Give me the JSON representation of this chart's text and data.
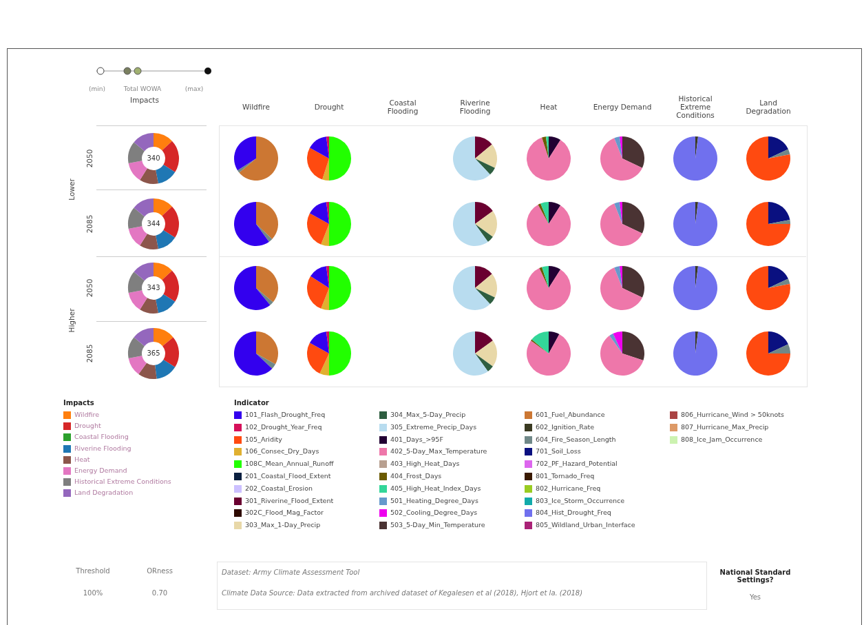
{
  "chart_data": [
    {
      "type": "other",
      "annotations": [
        "(min)",
        "Total WOWA",
        "(max)",
        "Impacts",
        "Wildfire",
        "Drought",
        "Coastal Flooding",
        "Riverine Flooding",
        "Heat",
        "Energy Demand",
        "Historical Extreme Conditions",
        "Land Degradation",
        "Lower",
        "Higher",
        "2050",
        "2085",
        "2050",
        "2085"
      ]
    },
    {
      "type": "donut",
      "categories": [
        null,
        null,
        null,
        null,
        null,
        null,
        null,
        null
      ],
      "values": [
        13,
        21,
        null,
        13,
        12,
        13,
        14,
        14
      ],
      "colors": [
        "#ff7f0e",
        "#d62728",
        "#2ca02c",
        "#1f77b4",
        "#8c564b",
        "#e377c2",
        "#7f7f7f",
        "#9467bd"
      ],
      "annotations": [
        "340"
      ]
    },
    {
      "type": "pie",
      "categories": [
        null,
        null,
        null
      ],
      "values": [
        64,
        2,
        34
      ],
      "colors": [
        "#cc7733",
        "#708888",
        "#3300ee"
      ]
    },
    {
      "type": "pie",
      "categories": [
        null,
        null,
        null,
        null,
        null
      ],
      "values": [
        50,
        5,
        28,
        15,
        2
      ],
      "colors": [
        "#22ff00",
        "#e0b030",
        "#ff4a10",
        "#3300ee",
        "#d6105a"
      ]
    },
    {
      "type": "pie",
      "categories": [
        null,
        null,
        null,
        null
      ],
      "values": [
        14,
        18,
        6,
        62
      ],
      "colors": [
        "#6a0030",
        "#e8d8a8",
        "#2e5e40",
        "#b8dcef"
      ]
    },
    {
      "type": "pie",
      "categories": [
        null,
        null,
        null,
        null
      ],
      "values": [
        9,
        86,
        3,
        2
      ],
      "colors": [
        "#220033",
        "#ee77aa",
        "#6b5a00",
        "#33d699"
      ]
    },
    {
      "type": "pie",
      "categories": [
        null,
        null,
        null,
        null
      ],
      "values": [
        32,
        62,
        4,
        2
      ],
      "colors": [
        "#4a3333",
        "#ee77aa",
        "#6699cc",
        "#ee00ee"
      ]
    },
    {
      "type": "pie",
      "categories": [
        null,
        null
      ],
      "values": [
        2,
        98
      ],
      "colors": [
        "#3a3a22",
        "#7070ee"
      ]
    },
    {
      "type": "pie",
      "categories": [
        null,
        null,
        null
      ],
      "values": [
        18,
        4,
        78
      ],
      "colors": [
        "#0a1080",
        "#708888",
        "#ff4a10"
      ]
    },
    {
      "type": "donut",
      "categories": [
        null,
        null,
        null,
        null,
        null,
        null,
        null,
        null
      ],
      "values": [
        13,
        21,
        null,
        13,
        12,
        13,
        14,
        14
      ],
      "colors": [
        "#ff7f0e",
        "#d62728",
        "#2ca02c",
        "#1f77b4",
        "#8c564b",
        "#e377c2",
        "#7f7f7f",
        "#9467bd"
      ],
      "annotations": [
        "344"
      ]
    },
    {
      "type": "pie",
      "categories": [
        null,
        null,
        null
      ],
      "values": [
        37,
        3,
        60
      ],
      "colors": [
        "#cc7733",
        "#708888",
        "#3300ee"
      ]
    },
    {
      "type": "pie",
      "categories": [
        null,
        null,
        null,
        null,
        null
      ],
      "values": [
        50,
        6,
        27,
        15,
        2
      ],
      "colors": [
        "#22ff00",
        "#e0b030",
        "#ff4a10",
        "#3300ee",
        "#d6105a"
      ]
    },
    {
      "type": "pie",
      "categories": [
        null,
        null,
        null,
        null
      ],
      "values": [
        15,
        20,
        5,
        60
      ],
      "colors": [
        "#6a0030",
        "#e8d8a8",
        "#2e5e40",
        "#b8dcef"
      ]
    },
    {
      "type": "pie",
      "categories": [
        null,
        null,
        null,
        null
      ],
      "values": [
        9,
        83,
        2,
        6
      ],
      "colors": [
        "#220033",
        "#ee77aa",
        "#6b5a00",
        "#33d699"
      ]
    },
    {
      "type": "pie",
      "categories": [
        null,
        null,
        null,
        null
      ],
      "values": [
        32,
        62,
        4,
        2
      ],
      "colors": [
        "#4a3333",
        "#ee77aa",
        "#6699cc",
        "#ee00ee"
      ]
    },
    {
      "type": "pie",
      "categories": [
        null,
        null
      ],
      "values": [
        2,
        98
      ],
      "colors": [
        "#3a3a22",
        "#7070ee"
      ]
    },
    {
      "type": "pie",
      "categories": [
        null,
        null,
        null
      ],
      "values": [
        22,
        3,
        75
      ],
      "colors": [
        "#0a1080",
        "#708888",
        "#ff4a10"
      ]
    },
    {
      "type": "donut",
      "categories": [
        null,
        null,
        null,
        null,
        null,
        null,
        null,
        null
      ],
      "values": [
        13,
        21,
        null,
        13,
        12,
        13,
        14,
        14
      ],
      "colors": [
        "#ff7f0e",
        "#d62728",
        "#2ca02c",
        "#1f77b4",
        "#8c564b",
        "#e377c2",
        "#7f7f7f",
        "#9467bd"
      ],
      "annotations": [
        "343"
      ]
    },
    {
      "type": "pie",
      "categories": [
        null,
        null,
        null
      ],
      "values": [
        36,
        3,
        61
      ],
      "colors": [
        "#cc7733",
        "#708888",
        "#3300ee"
      ]
    },
    {
      "type": "pie",
      "categories": [
        null,
        null,
        null,
        null,
        null
      ],
      "values": [
        50,
        6,
        28,
        14,
        2
      ],
      "colors": [
        "#22ff00",
        "#e0b030",
        "#ff4a10",
        "#3300ee",
        "#d6105a"
      ]
    },
    {
      "type": "pie",
      "categories": [
        null,
        null,
        null,
        null
      ],
      "values": [
        14,
        18,
        6,
        62
      ],
      "colors": [
        "#6a0030",
        "#e8d8a8",
        "#2e5e40",
        "#b8dcef"
      ]
    },
    {
      "type": "pie",
      "categories": [
        null,
        null,
        null,
        null
      ],
      "values": [
        9,
        84,
        2,
        5
      ],
      "colors": [
        "#220033",
        "#ee77aa",
        "#6b5a00",
        "#33d699"
      ]
    },
    {
      "type": "pie",
      "categories": [
        null,
        null,
        null,
        null
      ],
      "values": [
        32,
        62,
        4,
        2
      ],
      "colors": [
        "#4a3333",
        "#ee77aa",
        "#6699cc",
        "#ee00ee"
      ]
    },
    {
      "type": "pie",
      "categories": [
        null,
        null
      ],
      "values": [
        2,
        98
      ],
      "colors": [
        "#3a3a22",
        "#7070ee"
      ]
    },
    {
      "type": "pie",
      "categories": [
        null,
        null,
        null
      ],
      "values": [
        18,
        4,
        78
      ],
      "colors": [
        "#0a1080",
        "#708888",
        "#ff4a10"
      ]
    },
    {
      "type": "donut",
      "categories": [
        null,
        null,
        null,
        null,
        null,
        null,
        null,
        null
      ],
      "values": [
        14,
        20,
        null,
        14,
        12,
        12,
        14,
        14
      ],
      "colors": [
        "#ff7f0e",
        "#d62728",
        "#2ca02c",
        "#1f77b4",
        "#8c564b",
        "#e377c2",
        "#7f7f7f",
        "#9467bd"
      ],
      "annotations": [
        "365"
      ]
    },
    {
      "type": "pie",
      "categories": [
        null,
        null,
        null
      ],
      "values": [
        33,
        4,
        63
      ],
      "colors": [
        "#cc7733",
        "#708888",
        "#3300ee"
      ]
    },
    {
      "type": "pie",
      "categories": [
        null,
        null,
        null,
        null,
        null
      ],
      "values": [
        50,
        7,
        26,
        15,
        2
      ],
      "colors": [
        "#22ff00",
        "#e0b030",
        "#ff4a10",
        "#3300ee",
        "#d6105a"
      ]
    },
    {
      "type": "pie",
      "categories": [
        null,
        null,
        null,
        null
      ],
      "values": [
        15,
        20,
        5,
        60
      ],
      "colors": [
        "#6a0030",
        "#e8d8a8",
        "#2e5e40",
        "#b8dcef"
      ]
    },
    {
      "type": "pie",
      "categories": [
        null,
        null,
        null,
        null
      ],
      "values": [
        8,
        77,
        1,
        14
      ],
      "colors": [
        "#220033",
        "#ee77aa",
        "#6b5a00",
        "#33d699"
      ]
    },
    {
      "type": "pie",
      "categories": [
        null,
        null,
        null,
        null
      ],
      "values": [
        30,
        60,
        3,
        7
      ],
      "colors": [
        "#4a3333",
        "#ee77aa",
        "#6699cc",
        "#ee00ee"
      ]
    },
    {
      "type": "pie",
      "categories": [
        null,
        null
      ],
      "values": [
        2,
        98
      ],
      "colors": [
        "#3a3a22",
        "#7070ee"
      ]
    },
    {
      "type": "pie",
      "categories": [
        null,
        null,
        null
      ],
      "values": [
        18,
        7,
        75
      ],
      "colors": [
        "#0a1080",
        "#708888",
        "#ff4a10"
      ]
    },
    {
      "type": "other",
      "legend_title": "Impacts",
      "categories": [
        "Wildfire",
        "Drought",
        "Coastal Flooding",
        "Riverine Flooding",
        "Heat",
        "Energy Demand",
        "Historical Extreme Conditions",
        "Land Degradation"
      ],
      "colors": [
        "#ff7f0e",
        "#d62728",
        "#2ca02c",
        "#1f77b4",
        "#8c564b",
        "#e377c2",
        "#7f7f7f",
        "#9467bd"
      ]
    },
    {
      "type": "other",
      "legend_title": "Indicator",
      "categories": [
        "101_Flash_Drought_Freq",
        "102_Drought_Year_Freq",
        "105_Aridity",
        "106_Consec_Dry_Days",
        "108C_Mean_Annual_Runoff",
        "201_Coastal_Flood_Extent",
        "202_Coastal_Erosion",
        "301_Riverine_Flood_Extent",
        "302C_Flood_Mag_Factor",
        "303_Max_1-Day_Precip",
        "304_Max_5-Day_Precip",
        "305_Extreme_Precip_Days",
        "401_Days_>95F",
        "402_5-Day_Max_Temperature",
        "403_High_Heat_Days",
        "404_Frost_Days",
        "405_High_Heat_Index_Days",
        "501_Heating_Degree_Days",
        "502_Cooling_Degree_Days",
        "503_5-Day_Min_Temperature",
        "601_Fuel_Abundance",
        "602_Ignition_Rate",
        "604_Fire_Season_Length",
        "701_Soil_Loss",
        "702_PF_Hazard_Potential",
        "801_Tornado_Freq",
        "802_Hurricane_Freq",
        "803_Ice_Storm_Occurrence",
        "804_Hist_Drought_Freq",
        "805_Wildland_Urban_Interface",
        "806_Hurricane_Wind > 50knots",
        "807_Hurricane_Max_Precip",
        "808_Ice_Jam_Occurrence"
      ],
      "colors": [
        "#3300ee",
        "#d6105a",
        "#ff4a10",
        "#e0b030",
        "#22ff00",
        "#0a2040",
        "#ccc0ff",
        "#6a0030",
        "#2e0a00",
        "#e8d8a8",
        "#2e5e40",
        "#b8dcef",
        "#220033",
        "#ee77aa",
        "#b8a090",
        "#6b5a00",
        "#33d699",
        "#6699cc",
        "#ee00ee",
        "#4a3333",
        "#cc7733",
        "#3a3a22",
        "#708888",
        "#0a1080",
        "#dd66ee",
        "#3a1a00",
        "#99cc22",
        "#11aaaa",
        "#7070ee",
        "#aa2277",
        "#aa4444",
        "#dd9966",
        "#ccf2b0"
      ]
    },
    {
      "type": "other",
      "annotations": [
        "Threshold",
        "ORness",
        "100%",
        "0.70",
        "Dataset: Army Climate Assessment Tool",
        "Climate Data Source: Data extracted from archived dataset of Kegalesen et al (2018), Hjort et la. (2018)",
        "National Standard Settings?",
        "Yes"
      ]
    }
  ]
}
